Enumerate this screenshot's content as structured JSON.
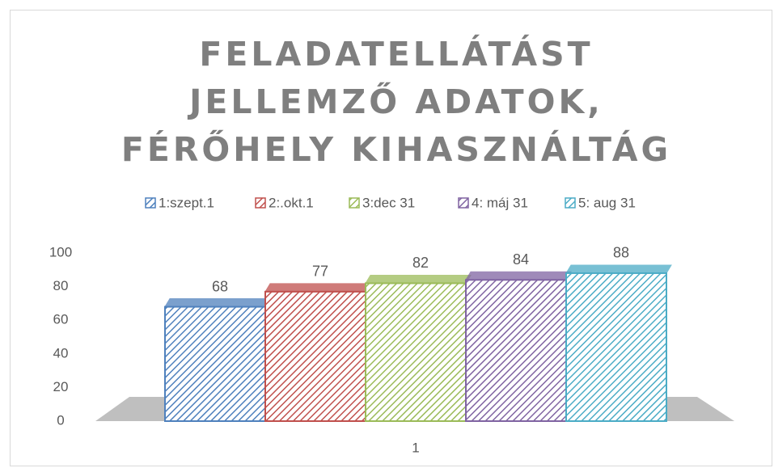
{
  "chart_data": {
    "type": "bar",
    "title": "FELADATELLÁTÁST JELLEMZŐ ADATOK, FÉRŐHELY KIHASZNÁLTÁG",
    "categories": [
      "1"
    ],
    "series": [
      {
        "name": "1:szept.1",
        "color": "#4f81bd",
        "values": [
          68
        ]
      },
      {
        "name": "2:.okt.1",
        "color": "#c0504d",
        "values": [
          77
        ]
      },
      {
        "name": "3:dec 31",
        "color": "#9bbb59",
        "values": [
          82
        ]
      },
      {
        "name": "4: máj 31",
        "color": "#8064a2",
        "values": [
          84
        ]
      },
      {
        "name": "5: aug 31",
        "color": "#4bacc6",
        "values": [
          88
        ]
      }
    ],
    "ylim": [
      0,
      100
    ],
    "yticks": [
      0,
      20,
      40,
      60,
      80,
      100
    ],
    "grid": false,
    "legend": "top",
    "data_labels": true
  }
}
